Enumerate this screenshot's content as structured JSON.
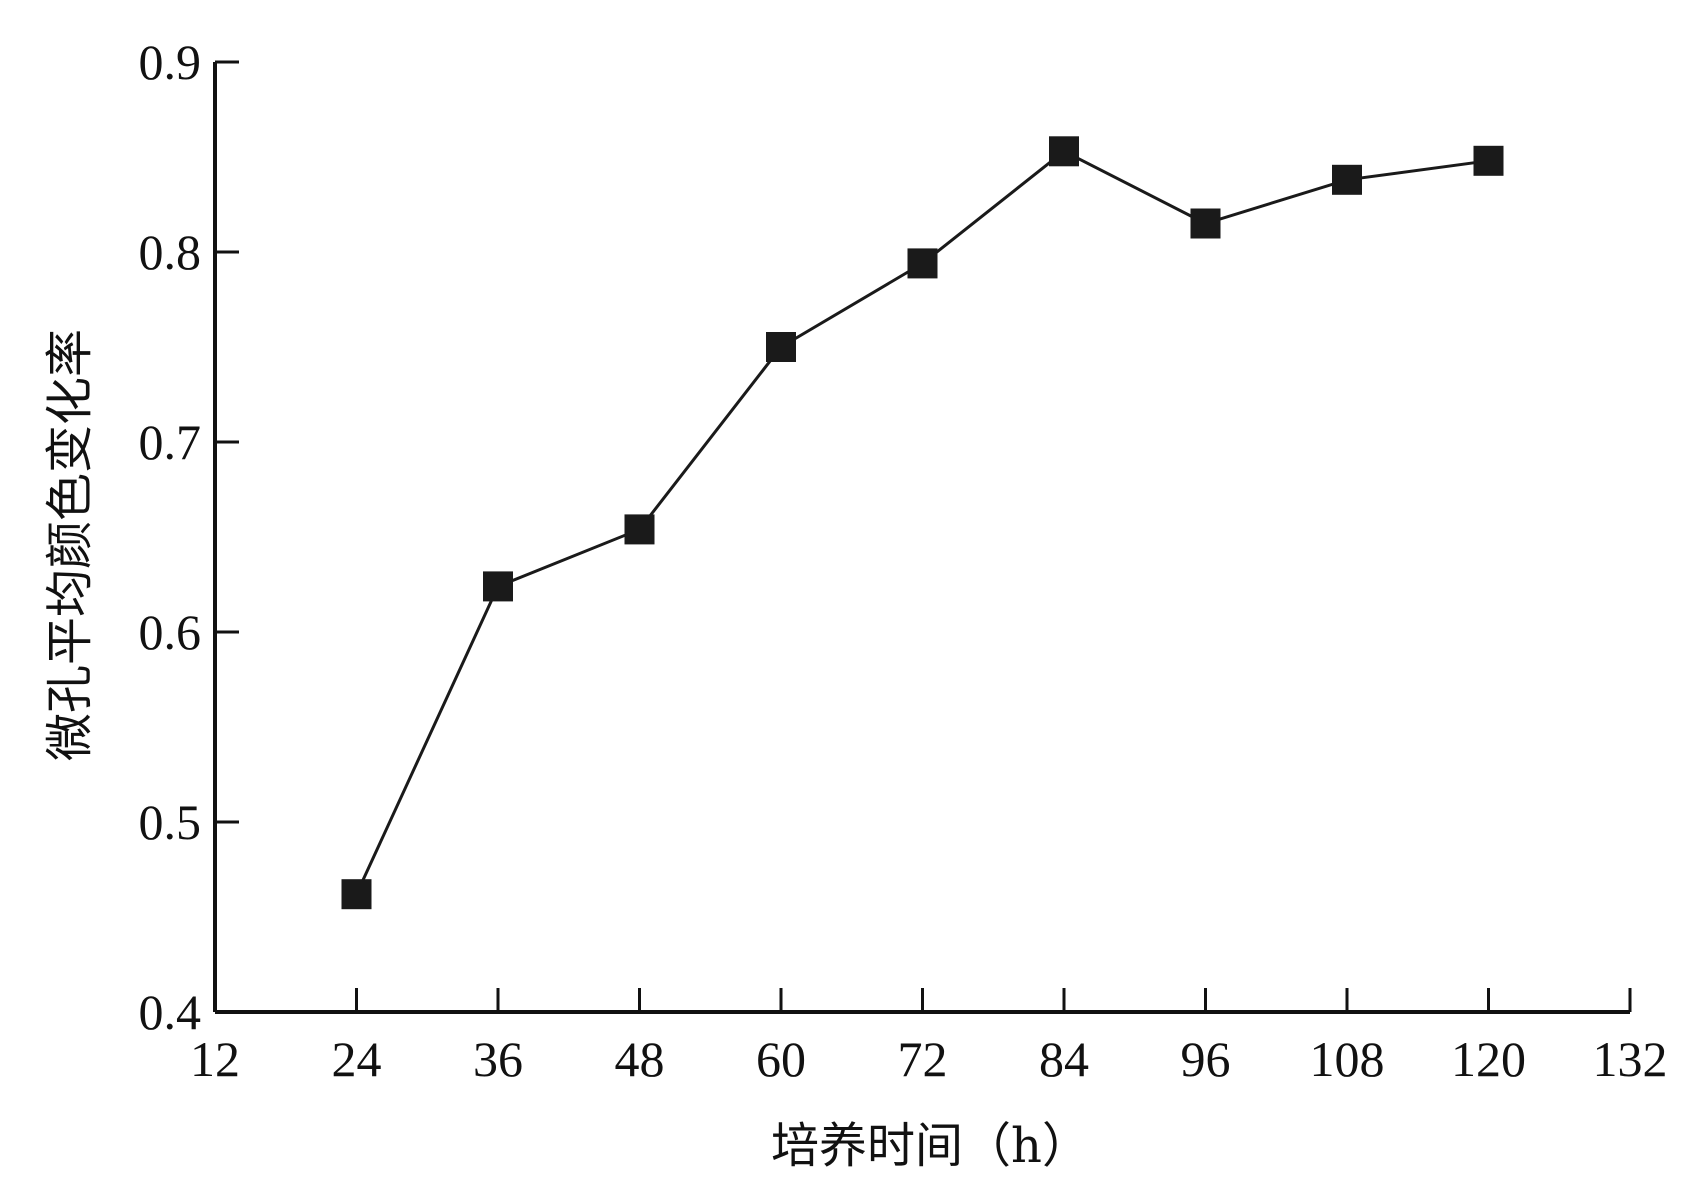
{
  "chart_data": {
    "type": "line",
    "title": "",
    "xlabel": "培养时间（h）",
    "ylabel": "微孔平均颜色变化率",
    "xlim": [
      12,
      132
    ],
    "ylim": [
      0.4,
      0.9
    ],
    "xticks": [
      12,
      24,
      36,
      48,
      60,
      72,
      84,
      96,
      108,
      120,
      132
    ],
    "yticks": [
      0.4,
      0.5,
      0.6,
      0.7,
      0.8,
      0.9
    ],
    "xtick_labels": [
      "12",
      "24",
      "36",
      "48",
      "60",
      "72",
      "84",
      "96",
      "108",
      "120",
      "132"
    ],
    "ytick_labels": [
      "0.4",
      "0.5",
      "0.6",
      "0.7",
      "0.8",
      "0.9"
    ],
    "grid": false,
    "legend": "none",
    "series": [
      {
        "marker": "square",
        "color": "#1a1a1a",
        "x": [
          24,
          36,
          48,
          60,
          72,
          84,
          96,
          108,
          120
        ],
        "y": [
          0.462,
          0.624,
          0.654,
          0.75,
          0.794,
          0.853,
          0.815,
          0.838,
          0.848
        ]
      }
    ]
  }
}
